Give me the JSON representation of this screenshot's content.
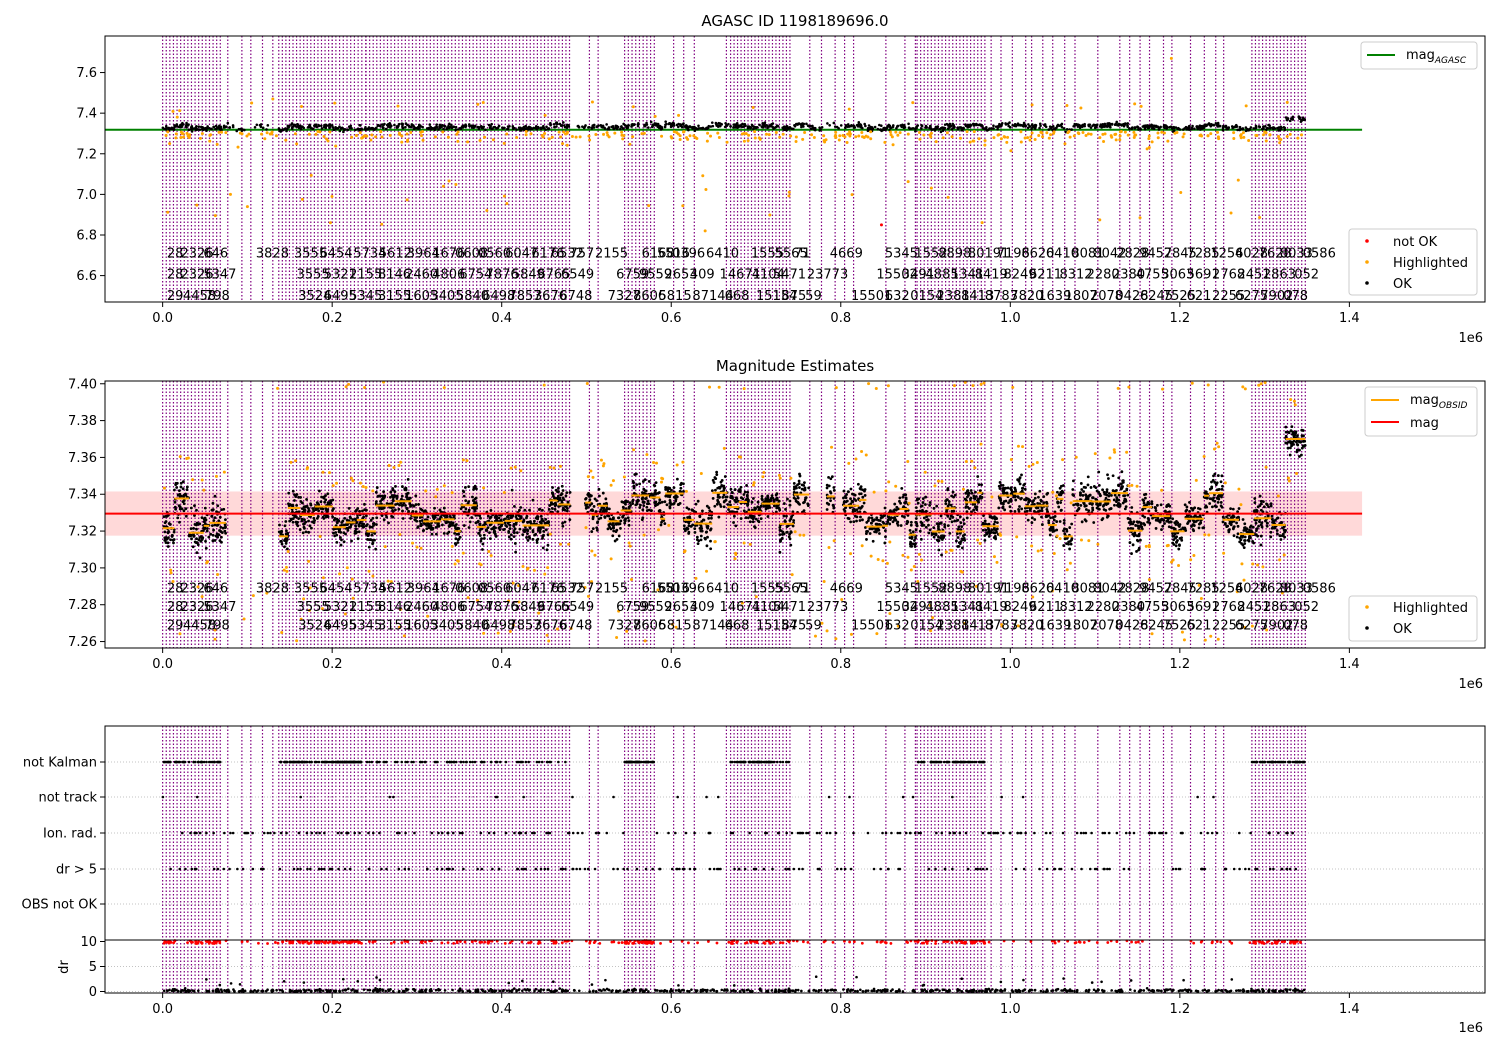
{
  "figure": {
    "background": "#ffffff"
  },
  "colors": {
    "obs_line": "#800080",
    "agasc_line": "#008000",
    "mag_line": "#ff0000",
    "mag_band": "#ffcccc",
    "obsid_line": "#ffa500",
    "highlighted": "#ffa500",
    "not_ok": "#ff0000",
    "ok": "#000000",
    "grid": "#b0b0b0"
  },
  "chart_data": [
    {
      "id": "top",
      "type": "scatter",
      "title": "AGASC ID 1198189696.0",
      "xlabel": "",
      "ylabel": "",
      "x_offset_label": "1e6",
      "xlim": [
        -0.068,
        1.56
      ],
      "ylim": [
        6.47,
        7.78
      ],
      "xticks": [
        0.0,
        0.2,
        0.4,
        0.6,
        0.8,
        1.0,
        1.2,
        1.4
      ],
      "xtick_labels": [
        "0.0",
        "0.2",
        "0.4",
        "0.6",
        "0.8",
        "1.0",
        "1.2",
        "1.4"
      ],
      "yticks": [
        6.6,
        6.8,
        7.0,
        7.2,
        7.4,
        7.6
      ],
      "ytick_labels": [
        "6.6",
        "6.8",
        "7.0",
        "7.2",
        "7.4",
        "7.6"
      ],
      "legend_upper": {
        "placement": "upper right",
        "entries": [
          {
            "label": "mag",
            "sub": "AGASC",
            "kind": "line",
            "color": "#008000"
          }
        ]
      },
      "legend_lower": {
        "placement": "lower right",
        "entries": [
          {
            "label": "not OK",
            "kind": "dot",
            "color": "#ff0000"
          },
          {
            "label": "Highlighted",
            "kind": "dot",
            "color": "#ffa500"
          },
          {
            "label": "OK",
            "kind": "dot",
            "color": "#000000"
          }
        ]
      },
      "mag_agasc": 7.318,
      "obs_label_rows_y": [
        6.68,
        6.575,
        6.47
      ]
    },
    {
      "id": "middle",
      "type": "scatter",
      "title": "Magnitude Estimates",
      "xlabel": "",
      "ylabel": "",
      "x_offset_label": "1e6",
      "xlim": [
        -0.068,
        1.56
      ],
      "ylim": [
        7.2565,
        7.4015
      ],
      "xticks": [
        0.0,
        0.2,
        0.4,
        0.6,
        0.8,
        1.0,
        1.2,
        1.4
      ],
      "xtick_labels": [
        "0.0",
        "0.2",
        "0.4",
        "0.6",
        "0.8",
        "1.0",
        "1.2",
        "1.4"
      ],
      "yticks": [
        7.26,
        7.28,
        7.3,
        7.32,
        7.34,
        7.36,
        7.38,
        7.4
      ],
      "ytick_labels": [
        "7.26",
        "7.28",
        "7.30",
        "7.32",
        "7.34",
        "7.36",
        "7.38",
        "7.40"
      ],
      "legend_upper": {
        "placement": "upper right",
        "entries": [
          {
            "label": "mag",
            "sub": "OBSID",
            "kind": "line",
            "color": "#ffa500"
          },
          {
            "label": "mag",
            "kind": "line",
            "color": "#ff0000"
          }
        ]
      },
      "legend_lower": {
        "placement": "lower right",
        "entries": [
          {
            "label": "Highlighted",
            "kind": "dot",
            "color": "#ffa500"
          },
          {
            "label": "OK",
            "kind": "dot",
            "color": "#000000"
          }
        ]
      },
      "mag_mean": 7.3295,
      "mag_band": [
        7.3175,
        7.3415
      ],
      "obs_label_rows_y": [
        7.2855,
        7.2755,
        7.2655
      ]
    },
    {
      "id": "flags",
      "type": "scatter",
      "title": "",
      "xlabel": "",
      "ylabel": "",
      "xlim": [
        -0.068,
        1.56
      ],
      "categories": [
        "OBS not OK",
        "dr > 5",
        "Ion. rad.",
        "not track",
        "not Kalman"
      ],
      "flag_density": {
        "not Kalman": "dense",
        "not track": "sparse",
        "Ion. rad.": "medium",
        "dr > 5": "medium",
        "OBS not OK": "none"
      }
    },
    {
      "id": "dr",
      "type": "scatter",
      "title": "",
      "xlabel": "",
      "ylabel": "dr",
      "x_offset_label": "1e6",
      "xlim": [
        -0.068,
        1.56
      ],
      "ylim": [
        -0.3,
        10.3
      ],
      "xticks": [
        0.0,
        0.2,
        0.4,
        0.6,
        0.8,
        1.0,
        1.2,
        1.4
      ],
      "xtick_labels": [
        "0.0",
        "0.2",
        "0.4",
        "0.6",
        "0.8",
        "1.0",
        "1.2",
        "1.4"
      ],
      "yticks": [
        0,
        5,
        10
      ],
      "ytick_labels": [
        "0",
        "5",
        "10"
      ],
      "threshold": 10
    }
  ],
  "observations": {
    "x_range_1e6": [
      0.0,
      1.348
    ],
    "group_edges_1e6": [
      [
        0.0,
        0.068
      ],
      [
        0.137,
        0.2
      ],
      [
        0.2,
        0.235
      ],
      [
        0.24,
        0.48
      ],
      [
        0.545,
        0.58
      ],
      [
        0.67,
        0.74
      ],
      [
        0.89,
        0.97
      ],
      [
        1.285,
        1.348
      ]
    ],
    "labels_row1": [
      {
        "x": 0.005,
        "t": "28"
      },
      {
        "x": 0.021,
        "t": "2326"
      },
      {
        "x": 0.048,
        "t": "646"
      },
      {
        "x": 0.11,
        "t": "3828"
      },
      {
        "x": 0.155,
        "t": "3555"
      },
      {
        "x": 0.185,
        "t": "6454"
      },
      {
        "x": 0.225,
        "t": "5734"
      },
      {
        "x": 0.255,
        "t": "5612"
      },
      {
        "x": 0.288,
        "t": "3964"
      },
      {
        "x": 0.318,
        "t": "1676"
      },
      {
        "x": 0.345,
        "t": "0608"
      },
      {
        "x": 0.372,
        "t": "0560"
      },
      {
        "x": 0.404,
        "t": "6047"
      },
      {
        "x": 0.435,
        "t": "6176"
      },
      {
        "x": 0.458,
        "t": "6532"
      },
      {
        "x": 0.48,
        "t": "757"
      },
      {
        "x": 0.51,
        "t": "2155"
      },
      {
        "x": 0.565,
        "t": "6168"
      },
      {
        "x": 0.583,
        "t": "5516"
      },
      {
        "x": 0.601,
        "t": "0396"
      },
      {
        "x": 0.641,
        "t": "6410"
      },
      {
        "x": 0.694,
        "t": "1555"
      },
      {
        "x": 0.722,
        "t": "5565"
      },
      {
        "x": 0.745,
        "t": "71"
      },
      {
        "x": 0.787,
        "t": "4669"
      },
      {
        "x": 0.852,
        "t": "5345"
      },
      {
        "x": 0.887,
        "t": "1552"
      },
      {
        "x": 0.915,
        "t": "8898"
      },
      {
        "x": 0.95,
        "t": "80191"
      },
      {
        "x": 0.984,
        "t": "7196"
      },
      {
        "x": 1.013,
        "t": "8620"
      },
      {
        "x": 1.042,
        "t": "6410"
      },
      {
        "x": 1.072,
        "t": "8081"
      },
      {
        "x": 1.098,
        "t": "8042"
      },
      {
        "x": 1.125,
        "t": "2828"
      },
      {
        "x": 1.152,
        "t": "9457"
      },
      {
        "x": 1.181,
        "t": "2845"
      },
      {
        "x": 1.208,
        "t": "7285"
      },
      {
        "x": 1.236,
        "t": "1256"
      },
      {
        "x": 1.265,
        "t": "4028"
      },
      {
        "x": 1.293,
        "t": "7628"
      },
      {
        "x": 1.318,
        "t": "8033"
      },
      {
        "x": 1.345,
        "t": "0586"
      }
    ],
    "labels_row2": [
      {
        "x": 0.005,
        "t": "28"
      },
      {
        "x": 0.021,
        "t": "2326"
      },
      {
        "x": 0.048,
        "t": "5347"
      },
      {
        "x": 0.158,
        "t": "3555"
      },
      {
        "x": 0.19,
        "t": "5321"
      },
      {
        "x": 0.22,
        "t": "2155"
      },
      {
        "x": 0.254,
        "t": "8146"
      },
      {
        "x": 0.286,
        "t": "2460"
      },
      {
        "x": 0.318,
        "t": "4806"
      },
      {
        "x": 0.35,
        "t": "6754"
      },
      {
        "x": 0.381,
        "t": "7876"
      },
      {
        "x": 0.412,
        "t": "5849"
      },
      {
        "x": 0.442,
        "t": "6765"
      },
      {
        "x": 0.47,
        "t": "6549"
      },
      {
        "x": 0.535,
        "t": "6759"
      },
      {
        "x": 0.562,
        "t": "9559"
      },
      {
        "x": 0.592,
        "t": "2653"
      },
      {
        "x": 0.622,
        "t": "409"
      },
      {
        "x": 0.657,
        "t": "14671"
      },
      {
        "x": 0.695,
        "t": "4104"
      },
      {
        "x": 0.72,
        "t": "5471"
      },
      {
        "x": 0.76,
        "t": "23773"
      },
      {
        "x": 0.842,
        "t": "15502"
      },
      {
        "x": 0.872,
        "t": "3491"
      },
      {
        "x": 0.9,
        "t": "4885"
      },
      {
        "x": 0.93,
        "t": "1341"
      },
      {
        "x": 0.958,
        "t": "8419"
      },
      {
        "x": 0.992,
        "t": "8249"
      },
      {
        "x": 1.022,
        "t": "6211"
      },
      {
        "x": 1.058,
        "t": "8312"
      },
      {
        "x": 1.09,
        "t": "2280"
      },
      {
        "x": 1.12,
        "t": "2380"
      },
      {
        "x": 1.148,
        "t": "4755"
      },
      {
        "x": 1.178,
        "t": "3063"
      },
      {
        "x": 1.208,
        "t": "5691"
      },
      {
        "x": 1.238,
        "t": "2768"
      },
      {
        "x": 1.268,
        "t": "2451"
      },
      {
        "x": 1.298,
        "t": "2863"
      },
      {
        "x": 1.335,
        "t": "052"
      }
    ],
    "labels_row3": [
      {
        "x": 0.005,
        "t": "29"
      },
      {
        "x": 0.024,
        "t": "4458"
      },
      {
        "x": 0.05,
        "t": "798"
      },
      {
        "x": 0.16,
        "t": "3524"
      },
      {
        "x": 0.19,
        "t": "6495"
      },
      {
        "x": 0.22,
        "t": "5345"
      },
      {
        "x": 0.254,
        "t": "3155"
      },
      {
        "x": 0.286,
        "t": "1605"
      },
      {
        "x": 0.316,
        "t": "3405"
      },
      {
        "x": 0.346,
        "t": "5840"
      },
      {
        "x": 0.377,
        "t": "6498"
      },
      {
        "x": 0.408,
        "t": "7857"
      },
      {
        "x": 0.438,
        "t": "3676"
      },
      {
        "x": 0.468,
        "t": "6748"
      },
      {
        "x": 0.525,
        "t": "7327"
      },
      {
        "x": 0.555,
        "t": "8606"
      },
      {
        "x": 0.585,
        "t": "5815"
      },
      {
        "x": 0.625,
        "t": "87144"
      },
      {
        "x": 0.663,
        "t": "668"
      },
      {
        "x": 0.7,
        "t": "15154"
      },
      {
        "x": 0.73,
        "t": "875"
      },
      {
        "x": 0.758,
        "t": "59"
      },
      {
        "x": 0.812,
        "t": "15501"
      },
      {
        "x": 0.852,
        "t": "632"
      },
      {
        "x": 0.882,
        "t": "0154"
      },
      {
        "x": 0.913,
        "t": "2381"
      },
      {
        "x": 0.942,
        "t": "8413"
      },
      {
        "x": 0.97,
        "t": "8783"
      },
      {
        "x": 1.0,
        "t": "7820"
      },
      {
        "x": 1.033,
        "t": "1639"
      },
      {
        "x": 1.064,
        "t": "1807"
      },
      {
        "x": 1.094,
        "t": "2078"
      },
      {
        "x": 1.124,
        "t": "0428"
      },
      {
        "x": 1.153,
        "t": "6245"
      },
      {
        "x": 1.18,
        "t": "7525"
      },
      {
        "x": 1.208,
        "t": "621"
      },
      {
        "x": 1.238,
        "t": "2255"
      },
      {
        "x": 1.265,
        "t": "6275"
      },
      {
        "x": 1.295,
        "t": "7902"
      },
      {
        "x": 1.322,
        "t": "078"
      }
    ]
  }
}
